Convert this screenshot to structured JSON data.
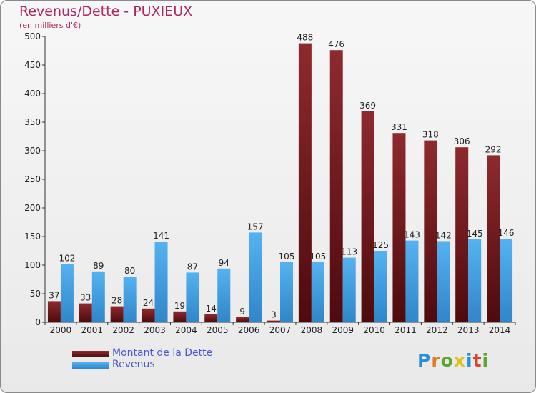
{
  "chart_data": {
    "type": "bar",
    "title": "Revenus/Dette - PUXIEUX",
    "subtitle": "(en milliers d'€)",
    "categories": [
      "2000",
      "2001",
      "2002",
      "2003",
      "2004",
      "2005",
      "2006",
      "2007",
      "2008",
      "2009",
      "2010",
      "2011",
      "2012",
      "2013",
      "2014"
    ],
    "series": [
      {
        "name": "Montant de la Dette",
        "color": "#7a1a1e",
        "values": [
          37,
          33,
          28,
          24,
          19,
          14,
          9,
          3,
          488,
          476,
          369,
          331,
          318,
          306,
          292
        ]
      },
      {
        "name": "Revenus",
        "color": "#3d9de0",
        "values": [
          102,
          89,
          80,
          141,
          87,
          94,
          157,
          105,
          105,
          113,
          125,
          143,
          142,
          145,
          146
        ]
      }
    ],
    "ylim": [
      0,
      500
    ],
    "yticks": [
      0,
      50,
      100,
      150,
      200,
      250,
      300,
      350,
      400,
      450,
      500
    ],
    "grid": false,
    "legend": "bottom-left"
  },
  "legend": {
    "items": [
      {
        "label": "Montant de la Dette",
        "color": "#7a1a1e"
      },
      {
        "label": "Revenus",
        "color": "#3d9de0"
      }
    ]
  },
  "logo": {
    "letters": [
      {
        "char": "P",
        "color": "#2a8fd6"
      },
      {
        "char": "r",
        "color": "#e27b1d"
      },
      {
        "char": "o",
        "color": "#58a832"
      },
      {
        "char": "x",
        "color": "#e2bf1d"
      },
      {
        "char": "i",
        "color": "#2a8fd6"
      },
      {
        "char": "t",
        "color": "#d8452f"
      },
      {
        "char": "i",
        "color": "#58a832"
      }
    ]
  }
}
